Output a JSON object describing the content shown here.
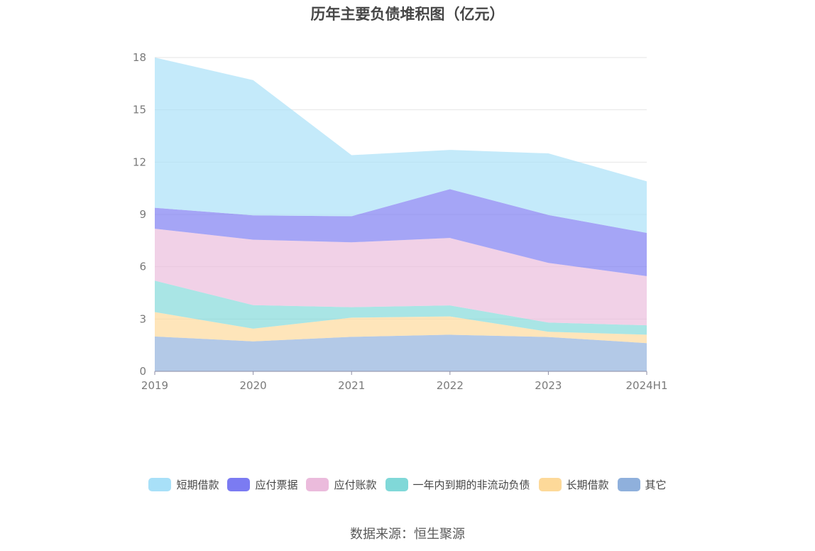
{
  "chart_data": {
    "type": "area",
    "stacked": true,
    "title": "历年主要负债堆积图（亿元）",
    "categories": [
      "2019",
      "2020",
      "2021",
      "2022",
      "2023",
      "2024H1"
    ],
    "ylim": [
      0,
      18
    ],
    "yticks": [
      0,
      3,
      6,
      9,
      12,
      15,
      18
    ],
    "grid": true,
    "legend_position": "bottom",
    "series": [
      {
        "name": "其它",
        "color": "#8fb0dc",
        "values": [
          2.0,
          1.72,
          1.98,
          2.1,
          1.97,
          1.62
        ]
      },
      {
        "name": "长期借款",
        "color": "#fdd999",
        "values": [
          1.4,
          0.73,
          1.1,
          1.05,
          0.3,
          0.48
        ]
      },
      {
        "name": "一年内到期的非流动负债",
        "color": "#80d8d8",
        "values": [
          1.8,
          1.35,
          0.6,
          0.63,
          0.53,
          0.54
        ]
      },
      {
        "name": "应付账款",
        "color": "#ebbbdc",
        "values": [
          2.98,
          3.75,
          3.72,
          3.87,
          3.42,
          2.82
        ]
      },
      {
        "name": "应付票据",
        "color": "#7b7bf2",
        "values": [
          1.2,
          1.4,
          1.5,
          2.8,
          2.75,
          2.48
        ]
      },
      {
        "name": "短期借款",
        "color": "#a8e0f8",
        "values": [
          8.62,
          7.75,
          3.5,
          2.25,
          3.53,
          2.96
        ]
      }
    ]
  },
  "legend_order": [
    "短期借款",
    "应付票据",
    "应付账款",
    "一年内到期的非流动负债",
    "长期借款",
    "其它"
  ],
  "source": "数据来源：恒生聚源"
}
